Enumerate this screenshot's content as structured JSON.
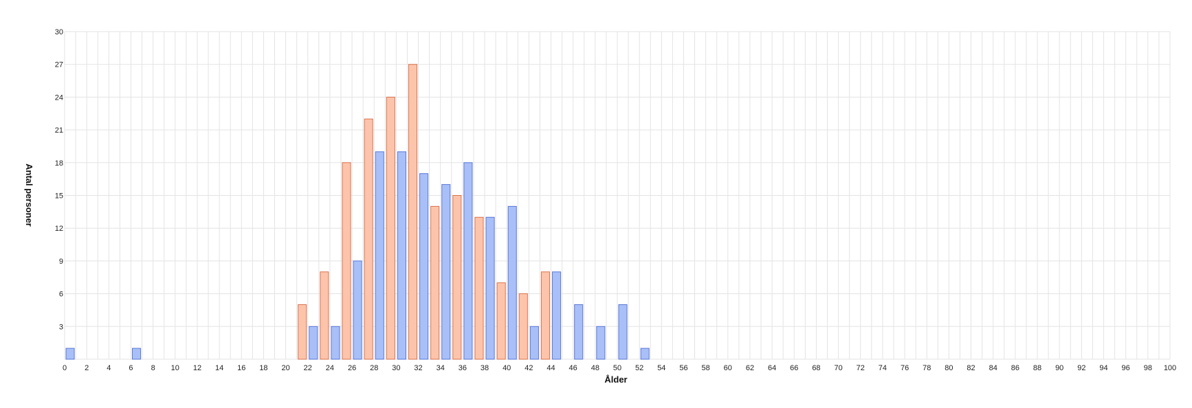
{
  "chart_data": {
    "type": "bar",
    "xlabel": "Ålder",
    "ylabel": "Antal personer",
    "xlim": [
      0,
      100
    ],
    "ylim": [
      0,
      30
    ],
    "x_tick_step": 2,
    "y_tick_step": 3,
    "grid": true,
    "colors": {
      "blue_fill": "#a9bff7",
      "blue_stroke": "#5a78d6",
      "orange_fill": "#fcc4ab",
      "orange_stroke": "#d9734f",
      "grid": "#e3e3e3"
    },
    "series": [
      {
        "color": "blue",
        "x": [
          0,
          6,
          22,
          24,
          26,
          28,
          30,
          32,
          34,
          36,
          38,
          40,
          42,
          44,
          46,
          48,
          50,
          52
        ],
        "values": [
          1,
          1,
          3,
          3,
          9,
          19,
          19,
          17,
          16,
          18,
          13,
          14,
          3,
          8,
          5,
          3,
          5,
          1
        ]
      },
      {
        "color": "orange",
        "x": [
          21,
          23,
          25,
          27,
          29,
          31,
          33,
          35,
          37,
          39,
          41,
          43
        ],
        "values": [
          5,
          8,
          18,
          22,
          24,
          27,
          14,
          15,
          13,
          7,
          6,
          8
        ]
      }
    ]
  }
}
